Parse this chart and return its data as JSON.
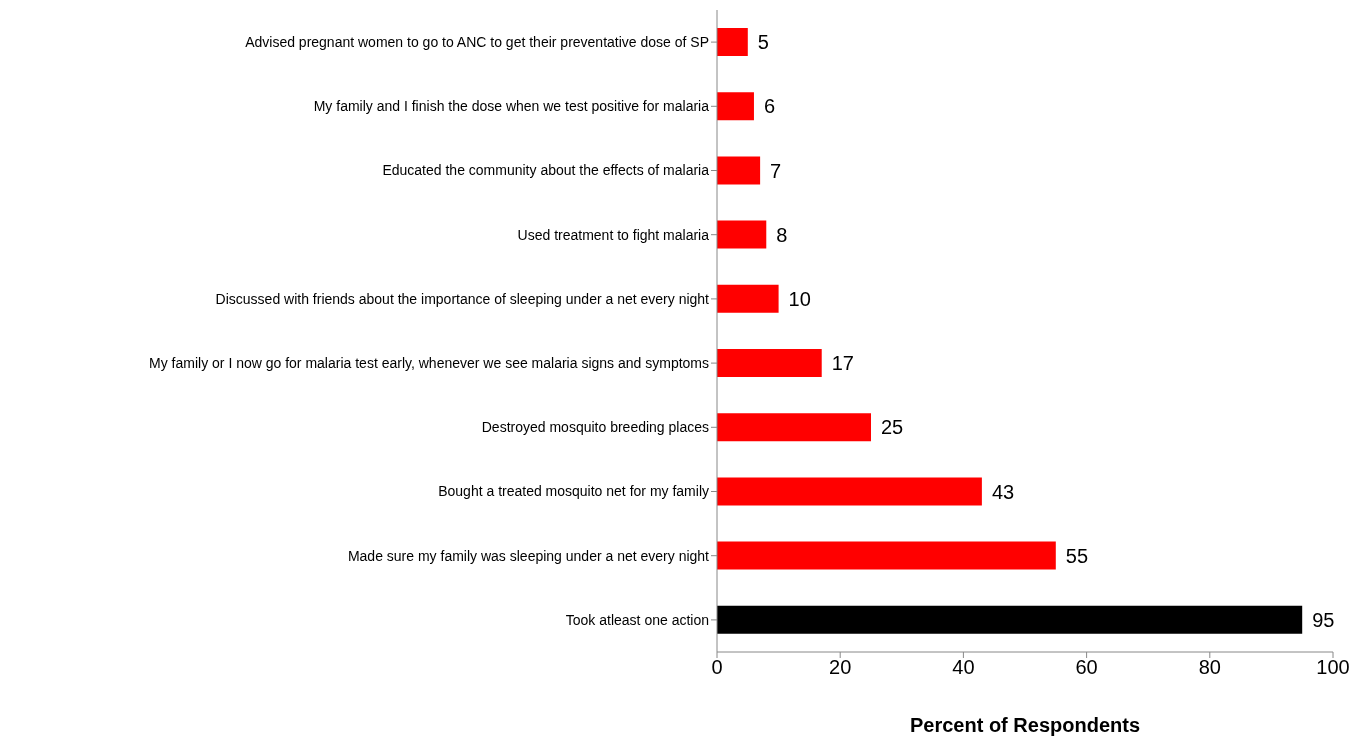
{
  "chart_data": {
    "type": "bar",
    "orientation": "horizontal",
    "xlabel": "Percent of Respondents",
    "categories": [
      "Advised pregnant women to go to ANC to get their preventative dose of SP",
      "My family and I finish the dose when we test positive for malaria",
      "Educated the community about the effects of malaria",
      "Used treatment to fight malaria",
      "Discussed with friends about the importance of sleeping under a net every night",
      "My family or I now go for malaria test early, whenever we see malaria signs and symptoms",
      "Destroyed mosquito breeding places",
      "Bought a treated mosquito net for my family",
      "Made sure my family was sleeping under a net every night",
      "Took atleast one action"
    ],
    "values": [
      5,
      6,
      7,
      8,
      10,
      17,
      25,
      43,
      55,
      95
    ],
    "colors": [
      "#ff0000",
      "#ff0000",
      "#ff0000",
      "#ff0000",
      "#ff0000",
      "#ff0000",
      "#ff0000",
      "#ff0000",
      "#ff0000",
      "#000000"
    ],
    "xlim": [
      0,
      100
    ],
    "xticks": [
      0,
      20,
      40,
      60,
      80,
      100
    ],
    "data_labels": true,
    "grid": false,
    "legend": false
  }
}
